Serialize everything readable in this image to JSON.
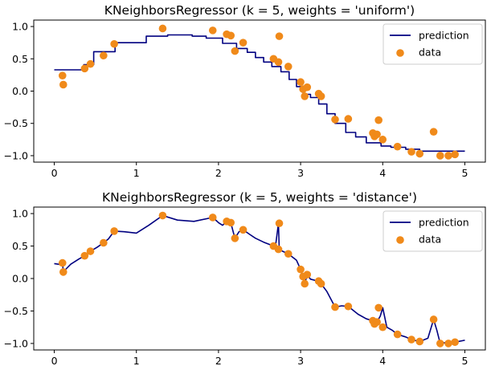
{
  "chart_data": [
    {
      "type": "line",
      "title": "KNeighborsRegressor (k = 5, weights = 'uniform')",
      "xlabel": "",
      "ylabel": "",
      "xlim": [
        -0.25,
        5.25
      ],
      "ylim": [
        -1.1,
        1.1
      ],
      "xticks": [
        0,
        1,
        2,
        3,
        4,
        5
      ],
      "yticks": [
        -1.0,
        -0.5,
        0.0,
        0.5,
        1.0
      ],
      "tick_labels_x": [
        "0",
        "1",
        "2",
        "3",
        "4",
        "5"
      ],
      "tick_labels_y": [
        "−1.0",
        "−0.5",
        "0.0",
        "0.5",
        "1.0"
      ],
      "grid": false,
      "legend_position": "top-right",
      "series": [
        {
          "name": "prediction",
          "kind": "step-line",
          "color": "#000080",
          "x": [
            0,
            0.36,
            0.36,
            0.48,
            0.48,
            0.74,
            0.74,
            1.12,
            1.12,
            1.38,
            1.38,
            1.68,
            1.68,
            1.85,
            1.85,
            2.05,
            2.05,
            2.22,
            2.22,
            2.35,
            2.35,
            2.45,
            2.45,
            2.55,
            2.55,
            2.65,
            2.65,
            2.76,
            2.76,
            2.86,
            2.86,
            2.95,
            2.95,
            3.03,
            3.03,
            3.12,
            3.12,
            3.22,
            3.22,
            3.32,
            3.32,
            3.42,
            3.42,
            3.55,
            3.55,
            3.67,
            3.67,
            3.8,
            3.8,
            3.98,
            3.98,
            4.1,
            4.1,
            4.28,
            4.28,
            4.45,
            4.45,
            4.58,
            4.58,
            5.0
          ],
          "values": [
            0.33,
            0.33,
            0.41,
            0.41,
            0.61,
            0.61,
            0.75,
            0.75,
            0.85,
            0.85,
            0.87,
            0.87,
            0.85,
            0.85,
            0.82,
            0.82,
            0.74,
            0.74,
            0.66,
            0.66,
            0.6,
            0.6,
            0.52,
            0.52,
            0.45,
            0.45,
            0.38,
            0.38,
            0.3,
            0.3,
            0.18,
            0.18,
            0.07,
            0.07,
            -0.05,
            -0.05,
            -0.1,
            -0.1,
            -0.2,
            -0.2,
            -0.35,
            -0.35,
            -0.5,
            -0.5,
            -0.64,
            -0.64,
            -0.71,
            -0.71,
            -0.8,
            -0.8,
            -0.85,
            -0.85,
            -0.87,
            -0.87,
            -0.9,
            -0.9,
            -0.93,
            -0.93,
            -0.93,
            -0.93
          ]
        },
        {
          "name": "data",
          "kind": "scatter",
          "color": "#f08a1a",
          "x": [
            0.1,
            0.11,
            0.37,
            0.44,
            0.6,
            0.73,
            1.32,
            1.93,
            2.1,
            2.15,
            2.2,
            2.3,
            2.67,
            2.73,
            2.74,
            2.85,
            3.0,
            3.03,
            3.05,
            3.08,
            3.22,
            3.25,
            3.42,
            3.58,
            3.88,
            3.9,
            3.93,
            3.95,
            4.0,
            4.18,
            4.35,
            4.45,
            4.62,
            4.7,
            4.8,
            4.88
          ],
          "values": [
            0.24,
            0.1,
            0.35,
            0.42,
            0.55,
            0.73,
            0.97,
            0.94,
            0.88,
            0.86,
            0.62,
            0.75,
            0.5,
            0.45,
            0.85,
            0.38,
            0.14,
            0.03,
            -0.08,
            0.06,
            -0.04,
            -0.08,
            -0.44,
            -0.43,
            -0.65,
            -0.7,
            -0.67,
            -0.45,
            -0.75,
            -0.86,
            -0.94,
            -0.97,
            -0.63,
            -1.0,
            -1.0,
            -0.98
          ]
        }
      ]
    },
    {
      "type": "line",
      "title": "KNeighborsRegressor (k = 5, weights = 'distance')",
      "xlabel": "",
      "ylabel": "",
      "xlim": [
        -0.25,
        5.25
      ],
      "ylim": [
        -1.1,
        1.1
      ],
      "xticks": [
        0,
        1,
        2,
        3,
        4,
        5
      ],
      "yticks": [
        -1.0,
        -0.5,
        0.0,
        0.5,
        1.0
      ],
      "tick_labels_x": [
        "0",
        "1",
        "2",
        "3",
        "4",
        "5"
      ],
      "tick_labels_y": [
        "−1.0",
        "−0.5",
        "0.0",
        "0.5",
        "1.0"
      ],
      "grid": false,
      "legend_position": "top-right",
      "series": [
        {
          "name": "prediction",
          "kind": "line",
          "color": "#000080",
          "x": [
            0,
            0.05,
            0.09,
            0.1,
            0.11,
            0.13,
            0.2,
            0.3,
            0.37,
            0.44,
            0.52,
            0.6,
            0.66,
            0.73,
            0.85,
            1.0,
            1.15,
            1.32,
            1.5,
            1.7,
            1.93,
            2.0,
            2.05,
            2.1,
            2.15,
            2.2,
            2.25,
            2.3,
            2.38,
            2.45,
            2.55,
            2.67,
            2.7,
            2.73,
            2.74,
            2.78,
            2.85,
            2.95,
            3.0,
            3.03,
            3.05,
            3.08,
            3.12,
            3.18,
            3.22,
            3.25,
            3.32,
            3.42,
            3.5,
            3.58,
            3.7,
            3.8,
            3.88,
            3.9,
            3.93,
            3.97,
            4.0,
            4.05,
            4.12,
            4.18,
            4.28,
            4.35,
            4.45,
            4.55,
            4.62,
            4.66,
            4.7,
            4.75,
            4.8,
            4.88,
            5.0
          ],
          "values": [
            0.23,
            0.22,
            0.21,
            0.24,
            0.1,
            0.13,
            0.22,
            0.3,
            0.35,
            0.42,
            0.48,
            0.55,
            0.61,
            0.73,
            0.72,
            0.7,
            0.82,
            0.97,
            0.9,
            0.88,
            0.94,
            0.86,
            0.82,
            0.88,
            0.86,
            0.62,
            0.72,
            0.75,
            0.68,
            0.62,
            0.56,
            0.5,
            0.55,
            0.85,
            0.45,
            0.42,
            0.38,
            0.28,
            0.14,
            0.03,
            -0.08,
            0.06,
            -0.01,
            -0.03,
            -0.04,
            -0.08,
            -0.2,
            -0.44,
            -0.42,
            -0.43,
            -0.55,
            -0.62,
            -0.65,
            -0.7,
            -0.67,
            -0.58,
            -0.45,
            -0.75,
            -0.8,
            -0.86,
            -0.9,
            -0.94,
            -0.97,
            -0.92,
            -0.63,
            -0.8,
            -1.0,
            -0.99,
            -1.0,
            -0.98,
            -0.95
          ]
        },
        {
          "name": "data",
          "kind": "scatter",
          "color": "#f08a1a",
          "x": [
            0.1,
            0.11,
            0.37,
            0.44,
            0.6,
            0.73,
            1.32,
            1.93,
            2.1,
            2.15,
            2.2,
            2.3,
            2.67,
            2.73,
            2.74,
            2.85,
            3.0,
            3.03,
            3.05,
            3.08,
            3.22,
            3.25,
            3.42,
            3.58,
            3.88,
            3.9,
            3.93,
            3.95,
            4.0,
            4.18,
            4.35,
            4.45,
            4.62,
            4.7,
            4.8,
            4.88
          ],
          "values": [
            0.24,
            0.1,
            0.35,
            0.42,
            0.55,
            0.73,
            0.97,
            0.94,
            0.88,
            0.86,
            0.62,
            0.75,
            0.5,
            0.45,
            0.85,
            0.38,
            0.14,
            0.03,
            -0.08,
            0.06,
            -0.04,
            -0.08,
            -0.44,
            -0.43,
            -0.65,
            -0.7,
            -0.67,
            -0.45,
            -0.75,
            -0.86,
            -0.94,
            -0.97,
            -0.63,
            -1.0,
            -1.0,
            -0.98
          ]
        }
      ]
    }
  ]
}
